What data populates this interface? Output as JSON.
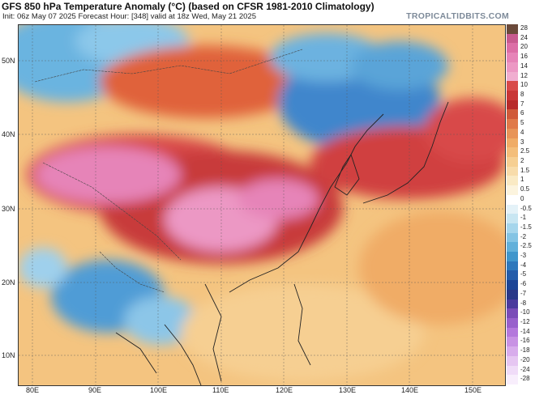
{
  "header": {
    "title": "GFS 850 hPa Temperature Anomaly (°C) (based on CFSR 1981-2010 Climatology)",
    "subtitle": "Init: 06z May 07 2025   Forecast Hour: [348]   valid at 18z Wed, May 21 2025",
    "brand": "TROPICALTIDBITS.COM"
  },
  "axes": {
    "lat_labels": [
      "50N",
      "40N",
      "30N",
      "20N",
      "10N"
    ],
    "lon_labels": [
      "80E",
      "90E",
      "100E",
      "110E",
      "120E",
      "130E",
      "140E",
      "150E"
    ]
  },
  "colorbar": {
    "labels": [
      "28",
      "24",
      "20",
      "16",
      "14",
      "12",
      "10",
      "8",
      "7",
      "6",
      "5",
      "4",
      "3",
      "2.5",
      "2",
      "1.5",
      "1",
      "0.5",
      "0",
      "-0.5",
      "-1",
      "-1.5",
      "-2",
      "-2.5",
      "-3",
      "-4",
      "-5",
      "-6",
      "-7",
      "-8",
      "-10",
      "-12",
      "-14",
      "-16",
      "-18",
      "-20",
      "-24",
      "-28"
    ],
    "colors": [
      "#6b4a3a",
      "#c85a8f",
      "#dc6ea6",
      "#e684b8",
      "#ec98c4",
      "#f0aed0",
      "#d84a4a",
      "#c93636",
      "#b82a2a",
      "#d05a3a",
      "#e07a4a",
      "#e89458",
      "#f0ac66",
      "#f4be7a",
      "#f6cf92",
      "#f8dcaa",
      "#faeac4",
      "#fcf4de",
      "#ffffff",
      "#e4f2f8",
      "#c8e6f2",
      "#a6d6ec",
      "#84c4e4",
      "#62b0da",
      "#4096cc",
      "#2e78bc",
      "#245caa",
      "#1c4596",
      "#2a3888",
      "#4b3a9e",
      "#7a4cb8",
      "#9860cc",
      "#b478dc",
      "#c892e4",
      "#d8acec",
      "#e6c6f2",
      "#f0dcf8",
      "#f8eefc"
    ]
  }
}
